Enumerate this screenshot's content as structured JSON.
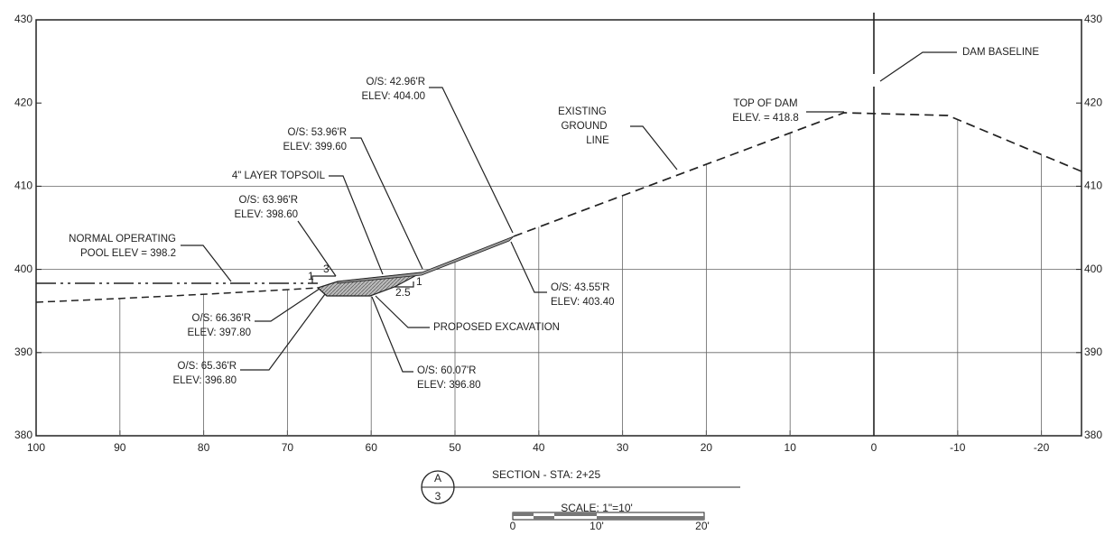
{
  "axes": {
    "elevations": [
      "430",
      "420",
      "410",
      "400",
      "390",
      "380"
    ],
    "offsets": [
      "100",
      "90",
      "80",
      "70",
      "60",
      "50",
      "40",
      "30",
      "20",
      "10",
      "0",
      "-10",
      "-20"
    ]
  },
  "annotations": {
    "dam_baseline": "DAM BASELINE",
    "top_of_dam": [
      "TOP OF DAM",
      "ELEV. = 418.8"
    ],
    "existing_ground": [
      "EXISTING",
      "GROUND",
      "LINE"
    ],
    "point_42_96": [
      "O/S: 42.96'R",
      "ELEV: 404.00"
    ],
    "point_53_96": [
      "O/S: 53.96'R",
      "ELEV: 399.60"
    ],
    "topsoil": "4\" LAYER TOPSOIL",
    "point_63_96": [
      "O/S: 63.96'R",
      "ELEV: 398.60"
    ],
    "pool": [
      "NORMAL OPERATING",
      "POOL ELEV = 398.2"
    ],
    "point_43_55": [
      "O/S: 43.55'R",
      "ELEV: 403.40"
    ],
    "excavation": "PROPOSED EXCAVATION",
    "point_66_36": [
      "O/S: 66.36'R",
      "ELEV: 397.80"
    ],
    "point_65_36": [
      "O/S: 65.36'R",
      "ELEV: 396.80"
    ],
    "point_60_07": [
      "O/S: 60.07'R",
      "ELEV: 396.80"
    ],
    "slopes": [
      "1",
      "3",
      "1",
      "2.5"
    ]
  },
  "title": {
    "marker_top": "A",
    "marker_bottom": "3",
    "text": "SECTION - STA: 2+25",
    "scale": "SCALE: 1\"=10'",
    "scale_ticks": [
      "0",
      "10'",
      "20'"
    ]
  }
}
